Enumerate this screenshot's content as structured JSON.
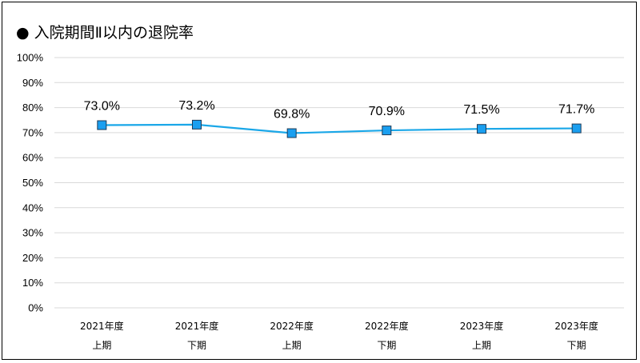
{
  "chart_data": {
    "type": "line",
    "title": "● 入院期間Ⅱ以内の退院率",
    "categories": [
      [
        "2021年度",
        "上期"
      ],
      [
        "2021年度",
        "下期"
      ],
      [
        "2022年度",
        "上期"
      ],
      [
        "2022年度",
        "下期"
      ],
      [
        "2023年度",
        "上期"
      ],
      [
        "2023年度",
        "下期"
      ]
    ],
    "series": [
      {
        "values": [
          73.0,
          73.2,
          69.8,
          70.9,
          71.5,
          71.7
        ],
        "labels": [
          "73.0%",
          "73.2%",
          "69.8%",
          "70.9%",
          "71.5%",
          "71.7%"
        ],
        "color": "#1aa7e8",
        "marker_color": "#1a9ff0"
      }
    ],
    "yticks": [
      "0%",
      "10%",
      "20%",
      "30%",
      "40%",
      "50%",
      "60%",
      "70%",
      "80%",
      "90%",
      "100%"
    ],
    "ylim": [
      0,
      100
    ],
    "grid": true,
    "grid_color": "#d9d9d9"
  }
}
